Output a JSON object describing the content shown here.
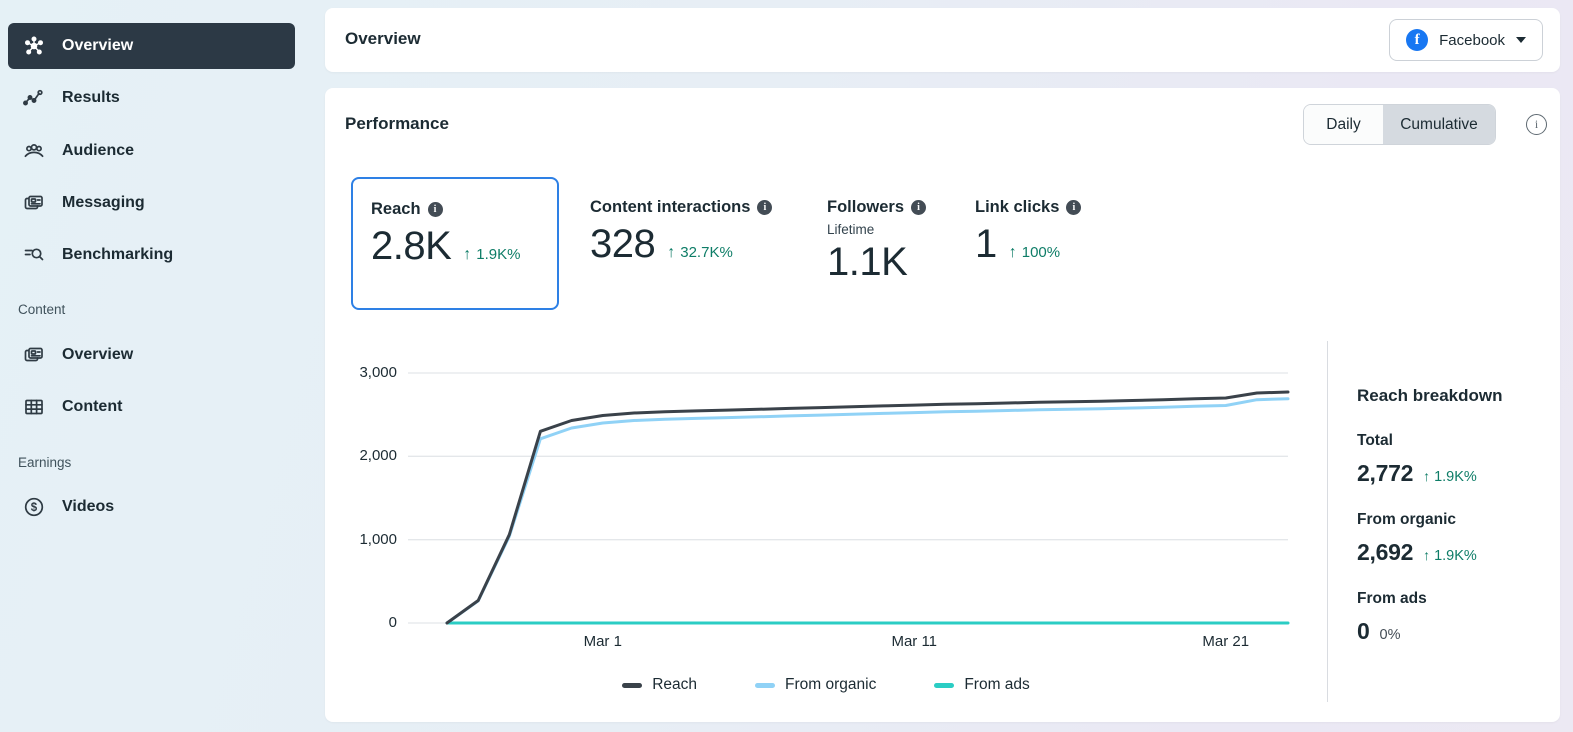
{
  "sidebar": {
    "items": [
      {
        "label": "Overview",
        "active": true
      },
      {
        "label": "Results"
      },
      {
        "label": "Audience"
      },
      {
        "label": "Messaging"
      },
      {
        "label": "Benchmarking"
      }
    ],
    "content_section": "Content",
    "content_items": [
      {
        "label": "Overview"
      },
      {
        "label": "Content"
      }
    ],
    "earnings_section": "Earnings",
    "earnings_items": [
      {
        "label": "Videos"
      }
    ]
  },
  "header": {
    "title": "Overview",
    "page_selector": {
      "label": "Facebook"
    }
  },
  "performance": {
    "title": "Performance",
    "toggle": {
      "options": [
        "Daily",
        "Cumulative"
      ],
      "selected": "Cumulative"
    }
  },
  "metrics": [
    {
      "label": "Reach",
      "value": "2.8K",
      "delta": "1.9K%",
      "selected": true
    },
    {
      "label": "Content interactions",
      "value": "328",
      "delta": "32.7K%"
    },
    {
      "label": "Followers",
      "sublabel": "Lifetime",
      "value": "1.1K"
    },
    {
      "label": "Link clicks",
      "value": "1",
      "delta": "100%"
    }
  ],
  "breakdown": {
    "title": "Reach breakdown",
    "rows": [
      {
        "label": "Total",
        "value": "2,772",
        "delta": "1.9K%",
        "positive": true
      },
      {
        "label": "From organic",
        "value": "2,692",
        "delta": "1.9K%",
        "positive": true
      },
      {
        "label": "From ads",
        "value": "0",
        "delta": "0%",
        "positive": false
      }
    ]
  },
  "colors": {
    "positive": "#0e7d67",
    "selected_card_border": "#2e80e5",
    "facebook_blue": "#1877f2",
    "sidebar_active_bg": "#2c3945"
  },
  "chart_data": {
    "type": "line",
    "title": "Cumulative reach over time",
    "xlabel": "",
    "ylabel": "",
    "ylim": [
      0,
      3000
    ],
    "grid": true,
    "legend_position": "bottom",
    "x": [
      "Feb 24",
      "Feb 25",
      "Feb 26",
      "Feb 27",
      "Feb 28",
      "Mar 1",
      "Mar 2",
      "Mar 3",
      "Mar 4",
      "Mar 5",
      "Mar 6",
      "Mar 7",
      "Mar 8",
      "Mar 9",
      "Mar 10",
      "Mar 11",
      "Mar 12",
      "Mar 13",
      "Mar 14",
      "Mar 15",
      "Mar 16",
      "Mar 17",
      "Mar 18",
      "Mar 19",
      "Mar 20",
      "Mar 21",
      "Mar 22",
      "Mar 23"
    ],
    "xticks": [
      {
        "index": 5,
        "label": "Mar 1"
      },
      {
        "index": 15,
        "label": "Mar 11"
      },
      {
        "index": 25,
        "label": "Mar 21"
      }
    ],
    "yticks": [
      {
        "value": 0,
        "label": "0"
      },
      {
        "value": 1000,
        "label": "1,000"
      },
      {
        "value": 2000,
        "label": "2,000"
      },
      {
        "value": 3000,
        "label": "3,000"
      }
    ],
    "series": [
      {
        "name": "From ads",
        "color": "#2bcdc4",
        "values": [
          0,
          0,
          0,
          0,
          0,
          0,
          0,
          0,
          0,
          0,
          0,
          0,
          0,
          0,
          0,
          0,
          0,
          0,
          0,
          0,
          0,
          0,
          0,
          0,
          0,
          0,
          0,
          0
        ]
      },
      {
        "name": "From organic",
        "color": "#90d2f6",
        "values": [
          0,
          265,
          1040,
          2210,
          2340,
          2400,
          2430,
          2445,
          2455,
          2465,
          2475,
          2485,
          2495,
          2505,
          2515,
          2525,
          2535,
          2542,
          2550,
          2558,
          2565,
          2572,
          2580,
          2588,
          2600,
          2610,
          2680,
          2692
        ]
      },
      {
        "name": "Reach",
        "color": "#3a424a",
        "values": [
          0,
          270,
          1060,
          2300,
          2430,
          2490,
          2520,
          2535,
          2545,
          2555,
          2565,
          2575,
          2585,
          2595,
          2605,
          2615,
          2625,
          2632,
          2640,
          2648,
          2655,
          2662,
          2670,
          2678,
          2690,
          2700,
          2760,
          2772
        ]
      }
    ]
  }
}
